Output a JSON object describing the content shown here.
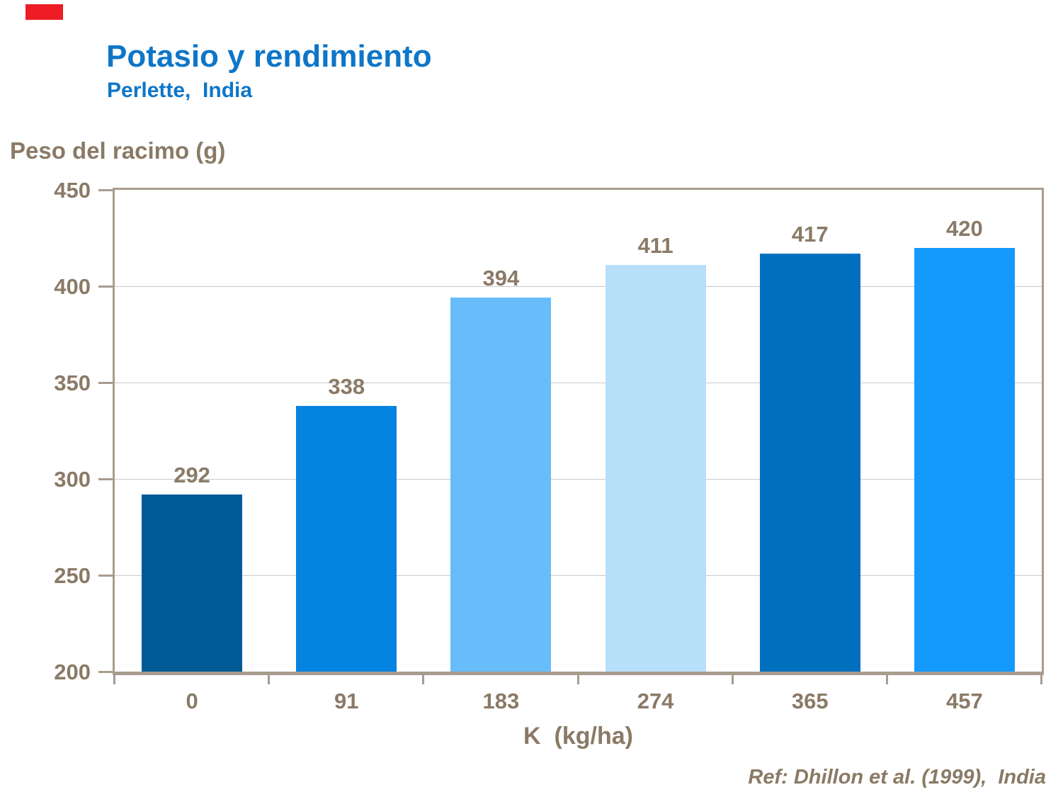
{
  "slide": {
    "title": "Potasio y rendimiento",
    "subtitle": "Perlette,  India",
    "reference": "Ref: Dhillon et al. (1999),  India"
  },
  "decor": {
    "red_block_color": "#ee1c25"
  },
  "chart_data": {
    "type": "bar",
    "title": "Potasio y rendimiento",
    "subtitle": "Perlette,  India",
    "ylabel": "Peso del racimo (g)",
    "xlabel": "K  (kg/ha)",
    "categories": [
      "0",
      "91",
      "183",
      "274",
      "365",
      "457"
    ],
    "values": [
      292,
      338,
      394,
      411,
      417,
      420
    ],
    "data_labels": [
      "292",
      "338",
      "394",
      "411",
      "417",
      "420"
    ],
    "ylim": [
      200,
      450
    ],
    "ytick_interval": 50,
    "yticks": [
      "450",
      "400",
      "350",
      "300",
      "250",
      "200"
    ],
    "grid": true,
    "legend_position": "none",
    "bar_colors": [
      "#005a96",
      "#0583e0",
      "#66bdfa",
      "#b8dffa",
      "#0070be",
      "#149afc"
    ],
    "annotation": "Ref: Dhillon et al. (1999),  India",
    "style_colors": {
      "title_blue": "#0e76c8",
      "label_brown": "#8a7a66",
      "axis_tan": "#a89c8e",
      "gridline_gray": "#c9c9c9"
    }
  }
}
